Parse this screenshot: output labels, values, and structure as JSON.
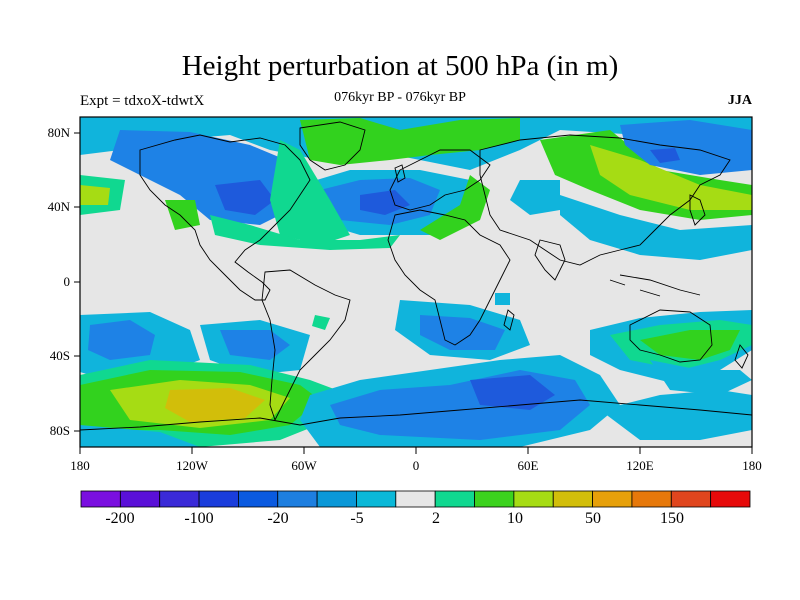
{
  "header": {
    "title": "Height perturbation at 500 hPa (in m)",
    "subtitle": "076kyr BP - 076kyr BP",
    "experiment": "Expt = tdxoX-tdwtX",
    "season": "JJA"
  },
  "axes": {
    "lon_ticks": [
      "180",
      "120W",
      "60W",
      "0",
      "60E",
      "120E",
      "180"
    ],
    "lat_ticks": [
      "80N",
      "40N",
      "0",
      "40S",
      "80S"
    ]
  },
  "colorbar": {
    "colors": [
      "#7a0fe0",
      "#5a10d8",
      "#3a2ad8",
      "#1a3ddc",
      "#0a5ae0",
      "#1e7fe0",
      "#0a98d8",
      "#0ab8d8",
      "#e6e6e6",
      "#10d890",
      "#3cd21e",
      "#a6dc14",
      "#d2be0a",
      "#e6a00a",
      "#e6780a",
      "#e0461e",
      "#e60a0a"
    ],
    "labels": [
      "-200",
      "-100",
      "-20",
      "-5",
      "2",
      "10",
      "50",
      "150"
    ]
  },
  "legend_colors": {
    "neutral": "#e6e6e6",
    "lightblue": "#10b4dc",
    "blue": "#1e82e6",
    "darkblue": "#1e5adc",
    "green": "#32d21e",
    "lightgreen": "#10d890",
    "yellowgreen": "#a6dc14",
    "yellow": "#d2be0a"
  }
}
